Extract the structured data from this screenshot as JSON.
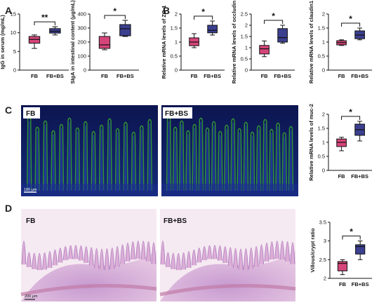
{
  "panels": [
    {
      "letter": "A"
    },
    {
      "letter": "B"
    },
    {
      "letter": "C"
    },
    {
      "letter": "D"
    }
  ],
  "colors": {
    "FB": "#d6457a",
    "FB+BS": "#3b3f8f",
    "fluor_blue": "#1a2f8a",
    "fluor_green": "#3fbf2a",
    "he_pink": "#e9c2dc",
    "he_purple": "#a878bd"
  },
  "micrographs": [
    {
      "label": "FB",
      "scale": "100 μm",
      "stain": "fluorescence"
    },
    {
      "label": "FB+BS",
      "stain": "fluorescence"
    },
    {
      "label": "FB",
      "scale": "200 μm",
      "stain": "HE"
    },
    {
      "label": "FB+BS",
      "stain": "HE"
    }
  ],
  "chart_data": [
    {
      "type": "box",
      "ylabel": "IgG in serum (mg/mL)",
      "ylim": [
        0,
        15
      ],
      "yticks": [
        0,
        5,
        10,
        15
      ],
      "categories": [
        "FB",
        "FB+BS"
      ],
      "boxes": [
        {
          "min": 5.8,
          "q1": 7.2,
          "median": 8.2,
          "q3": 9.0,
          "max": 9.4
        },
        {
          "min": 9.4,
          "q1": 9.9,
          "median": 10.4,
          "q3": 11.1,
          "max": 11.6
        }
      ],
      "significance": "**"
    },
    {
      "type": "box",
      "ylabel": "SIgA in intestinal content (μg/mL)",
      "ylim": [
        0,
        400
      ],
      "yticks": [
        0,
        100,
        200,
        300,
        400
      ],
      "categories": [
        "FB",
        "FB+BS"
      ],
      "boxes": [
        {
          "min": 145,
          "q1": 155,
          "median": 180,
          "q3": 240,
          "max": 265
        },
        {
          "min": 240,
          "q1": 245,
          "median": 295,
          "q3": 325,
          "max": 355
        }
      ],
      "significance": "*"
    },
    {
      "type": "box",
      "ylabel": "Relative mRNA levels of ZO-1",
      "ylim": [
        0,
        2.0
      ],
      "yticks": [
        0,
        0.5,
        1.0,
        1.5,
        2.0
      ],
      "categories": [
        "FB",
        "FB+BS"
      ],
      "boxes": [
        {
          "min": 0.8,
          "q1": 0.87,
          "median": 1.0,
          "q3": 1.15,
          "max": 1.3
        },
        {
          "min": 1.25,
          "q1": 1.33,
          "median": 1.42,
          "q3": 1.6,
          "max": 1.75
        }
      ],
      "significance": "*"
    },
    {
      "type": "box",
      "ylabel": "Relative mRNA levels of occludin",
      "ylim": [
        0,
        2.5
      ],
      "yticks": [
        0,
        0.5,
        1.0,
        1.5,
        2.0,
        2.5
      ],
      "categories": [
        "FB",
        "FB+BS"
      ],
      "boxes": [
        {
          "min": 0.6,
          "q1": 0.72,
          "median": 0.95,
          "q3": 1.1,
          "max": 1.3
        },
        {
          "min": 1.2,
          "q1": 1.25,
          "median": 1.45,
          "q3": 1.85,
          "max": 2.0
        }
      ],
      "significance": "*"
    },
    {
      "type": "box",
      "ylabel": "Relative mRNA levels of claudin1",
      "ylim": [
        0,
        2.0
      ],
      "yticks": [
        0,
        0.5,
        1.0,
        1.5,
        2.0
      ],
      "categories": [
        "FB",
        "FB+BS"
      ],
      "boxes": [
        {
          "min": 0.88,
          "q1": 0.9,
          "median": 0.98,
          "q3": 1.05,
          "max": 1.08
        },
        {
          "min": 1.08,
          "q1": 1.12,
          "median": 1.25,
          "q3": 1.4,
          "max": 1.5
        }
      ],
      "significance": "*"
    },
    {
      "type": "box",
      "ylabel": "Relative mRNA levels of muc-2",
      "ylim": [
        0,
        2.0
      ],
      "yticks": [
        0,
        0.5,
        1.0,
        1.5,
        2.0
      ],
      "categories": [
        "FB",
        "FB+BS"
      ],
      "boxes": [
        {
          "min": 0.7,
          "q1": 0.85,
          "median": 1.0,
          "q3": 1.12,
          "max": 1.18
        },
        {
          "min": 1.05,
          "q1": 1.25,
          "median": 1.45,
          "q3": 1.65,
          "max": 1.75
        }
      ],
      "significance": "*"
    },
    {
      "type": "box",
      "ylabel": "Villous/crypt ratio",
      "ylim": [
        2.0,
        3.5
      ],
      "yticks": [
        2.0,
        2.5,
        3.0,
        3.5
      ],
      "categories": [
        "FB",
        "FB+BS"
      ],
      "boxes": [
        {
          "min": 2.1,
          "q1": 2.2,
          "median": 2.4,
          "q3": 2.45,
          "max": 2.5
        },
        {
          "min": 2.5,
          "q1": 2.65,
          "median": 2.85,
          "q3": 2.9,
          "max": 3.0
        }
      ],
      "significance": "*"
    }
  ]
}
